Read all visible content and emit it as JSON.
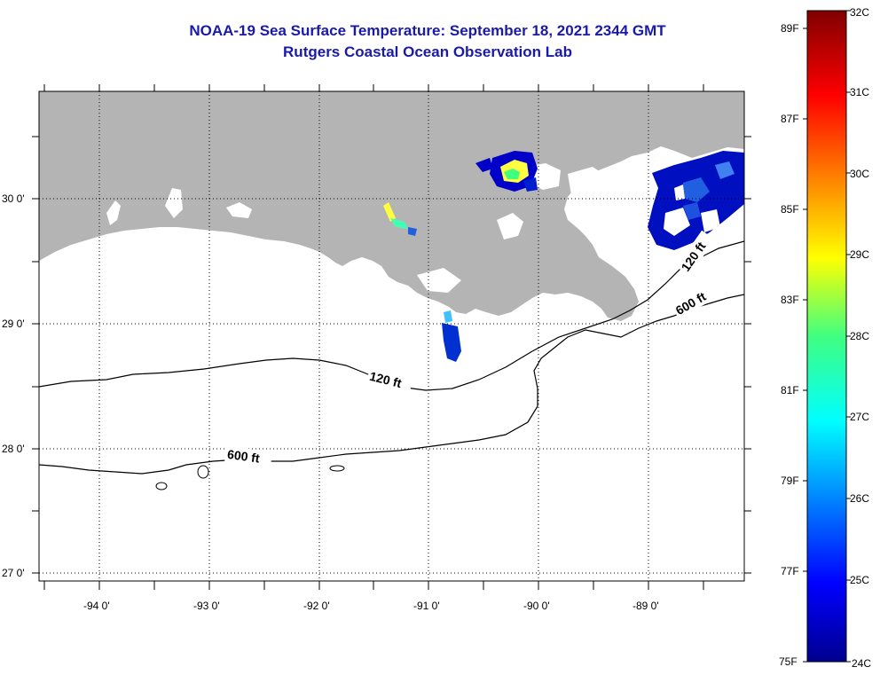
{
  "header": {
    "title": "NOAA-19 Sea Surface Temperature:  September 18, 2021 2344 GMT",
    "subtitle": "Rutgers Coastal Ocean Observation Lab"
  },
  "axes": {
    "latitude_labels": [
      "30 0'",
      "29 0'",
      "28 0'",
      "27 0'"
    ],
    "longitude_labels": [
      "-94 0'",
      "-93 0'",
      "-92 0'",
      "-91 0'",
      "-90 0'",
      "-89 0'"
    ]
  },
  "contours": {
    "isobath_120_label": "120 ft",
    "isobath_600_label": "600 ft"
  },
  "colorbar": {
    "fahrenheit_labels": [
      "89F",
      "87F",
      "85F",
      "83F",
      "81F",
      "79F",
      "77F",
      "75F"
    ],
    "celsius_labels": [
      "32C",
      "31C",
      "30C",
      "29C",
      "28C",
      "27C",
      "26C",
      "25C",
      "24C"
    ]
  },
  "colors": {
    "title": "#1a1aa8",
    "land": "#b4b4b4",
    "ocean": "#ffffff"
  },
  "chart_data": {
    "type": "heatmap",
    "title": "NOAA-19 Sea Surface Temperature:  September 18, 2021 2344 GMT",
    "subtitle": "Rutgers Coastal Ocean Observation Lab",
    "xlim": [
      -94.5,
      -88.2
    ],
    "ylim": [
      27.0,
      30.9
    ],
    "colorscale_celsius": [
      24,
      32
    ],
    "colorscale_fahrenheit": [
      75,
      89.6
    ],
    "grid": true
  }
}
